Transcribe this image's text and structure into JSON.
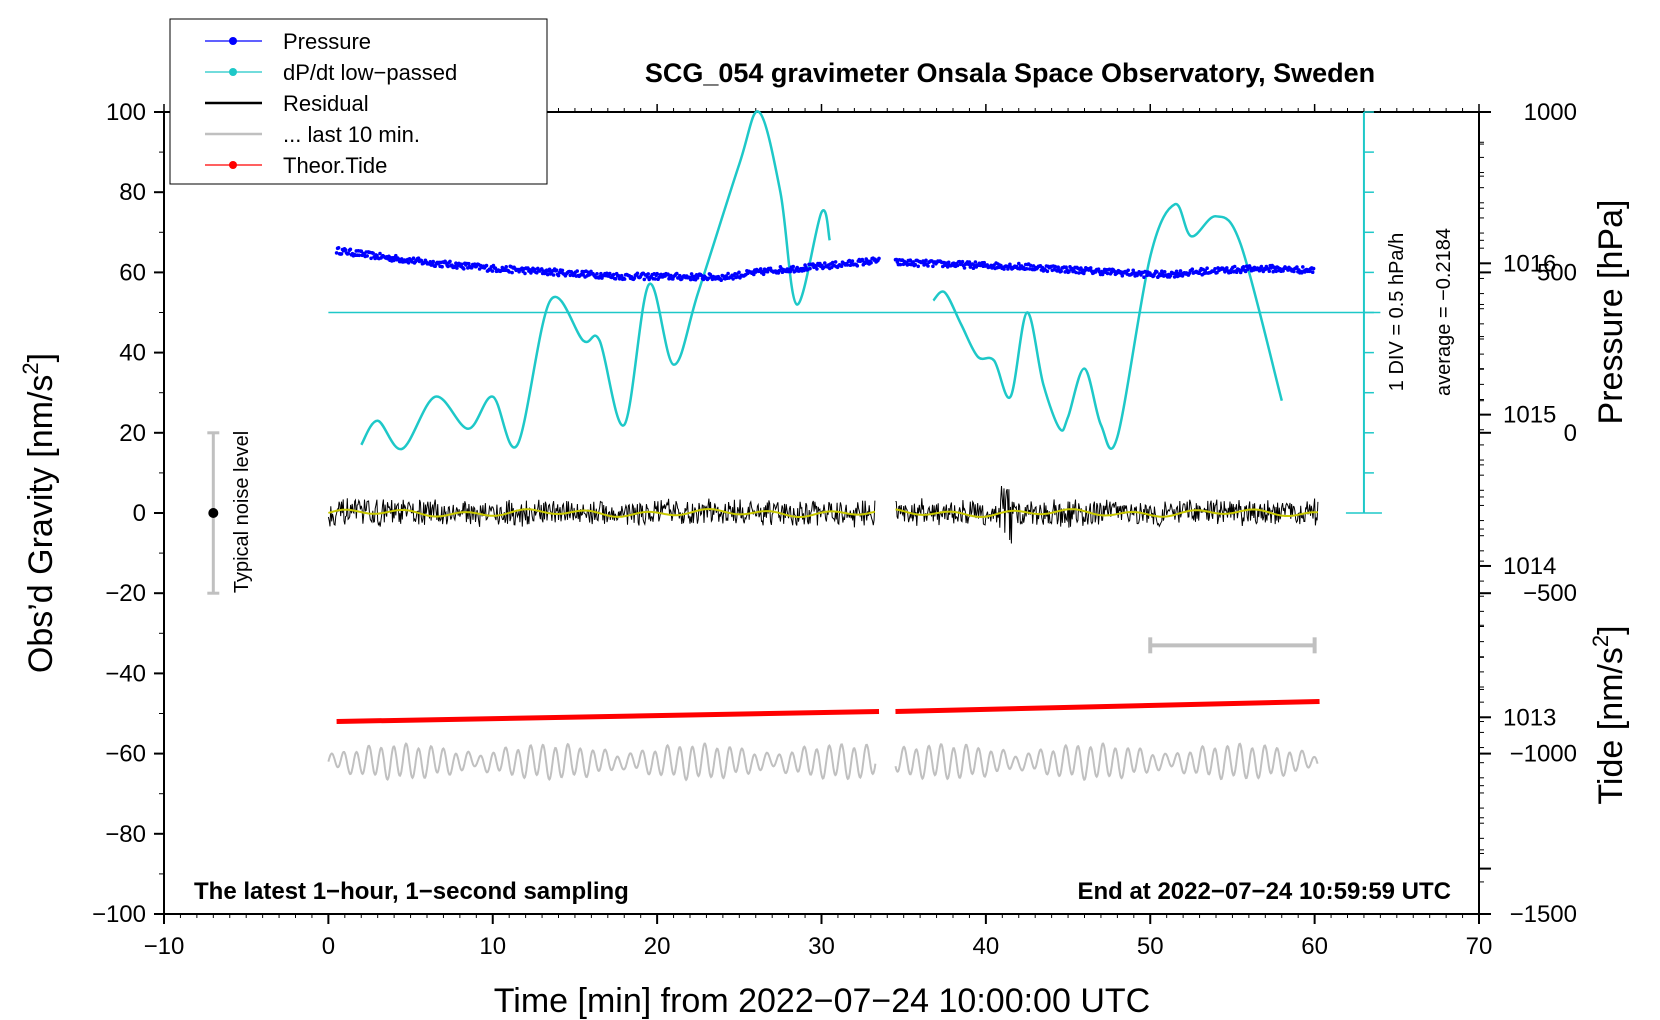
{
  "chart_data": {
    "type": "line",
    "title": "SCG_054 gravimeter Onsala Space Observatory, Sweden",
    "xlabel": "Time [min] from 2022−07−24 10:00:00 UTC",
    "ylabel_left": "Obs’d Gravity [nm/s",
    "ylabel_left_sup": "2",
    "ylabel_left_end": "]",
    "ylabel_right_pressure": "Pressure [hPa]",
    "ylabel_right_tide": "Tide [nm/s",
    "ylabel_right_tide_sup": "2",
    "ylabel_right_tide_end": "]",
    "xlim": [
      -10,
      70
    ],
    "ylim": [
      -100,
      100
    ],
    "x_ticks": [
      -10,
      0,
      10,
      20,
      30,
      40,
      50,
      60,
      70
    ],
    "x_tick_labels": [
      "−10",
      "0",
      "10",
      "20",
      "30",
      "40",
      "50",
      "60",
      "70"
    ],
    "y_ticks": [
      -100,
      -80,
      -60,
      -40,
      -20,
      0,
      20,
      40,
      60,
      80,
      100
    ],
    "y_tick_labels": [
      "−100",
      "−80",
      "−60",
      "−40",
      "−20",
      "0",
      "20",
      "40",
      "60",
      "80",
      "100"
    ],
    "pressure_axis": {
      "range": [
        1011.7,
        1017.0
      ],
      "ticks": [
        1013,
        1014,
        1015,
        1016
      ],
      "tick_labels": [
        "1013",
        "1014",
        "1015",
        "1016"
      ]
    },
    "tide_axis": {
      "range": [
        -1500,
        1000
      ],
      "ticks": [
        -1500,
        -1000,
        -500,
        0,
        500,
        1000
      ],
      "tick_labels": [
        "−1500",
        "−1000",
        "−500",
        "0",
        "500",
        "1000"
      ]
    },
    "legend": [
      {
        "label": "Pressure",
        "color": "#0000ff",
        "marker": true
      },
      {
        "label": "dP/dt low−passed",
        "color": "#1ec8c8",
        "marker": true
      },
      {
        "label": "Residual",
        "color": "#000000",
        "marker": false
      },
      {
        "label": "... last 10 min.",
        "color": "#c0c0c0",
        "marker": false
      },
      {
        "label": "Theor.Tide",
        "color": "#ff0000",
        "marker": true
      }
    ],
    "annotations": {
      "bottom_left": "The latest 1−hour, 1−second sampling",
      "bottom_right": "End at 2022−07−24 10:59:59 UTC",
      "noise_label": "Typical noise level",
      "div_label": "1 DIV = 0.5 hPa/h",
      "average_label": "average = −0.2184"
    },
    "noise_bar": {
      "x": -7,
      "y": 0,
      "ymin": -20,
      "ymax": 20
    },
    "dpdt_baseline": 50,
    "dpdt_segment1": {
      "x": [
        2,
        3,
        4.5,
        6.5,
        8.5,
        10,
        11.5,
        13.5,
        15.5,
        16.5,
        18,
        19.5,
        21,
        22.5,
        25,
        26.2,
        27.5,
        28.5,
        30,
        30.5
      ],
      "y": [
        17,
        23,
        16,
        29,
        21,
        29,
        17,
        53,
        43,
        43,
        22,
        57,
        37,
        55,
        87,
        100,
        80,
        52,
        75,
        68
      ]
    },
    "dpdt_segment2": {
      "x": [
        36.8,
        37.5,
        38.5,
        39.5,
        40.5,
        41.5,
        42.5,
        43.5,
        44.5,
        45,
        46,
        47,
        48,
        50,
        51.5,
        52.5,
        54,
        55.5,
        58
      ],
      "y": [
        53,
        55,
        47,
        39,
        38,
        29,
        50,
        32,
        21,
        24,
        36,
        22,
        19,
        64,
        77,
        69,
        74,
        67,
        28
      ]
    },
    "pressure_segment1": {
      "x": [
        0.5,
        3,
        6,
        10,
        14,
        18,
        20,
        24,
        27,
        30,
        33.5
      ],
      "y": [
        65.5,
        64,
        62.5,
        61,
        60,
        59,
        59,
        58.8,
        60.5,
        61.5,
        63
      ]
    },
    "pressure_segment2": {
      "x": [
        34.5,
        38,
        42,
        46,
        50,
        51,
        54,
        57,
        60
      ],
      "y": [
        62.5,
        62,
        61.5,
        60.5,
        59.5,
        59.5,
        60.5,
        61,
        60.5
      ]
    },
    "residual_segments": [
      [
        0,
        33.3
      ],
      [
        34.5,
        60.2
      ]
    ],
    "smoothed_residual_color": "#c8c800",
    "last10_segments": [
      [
        0,
        33.3
      ],
      [
        34.5,
        60.2
      ]
    ],
    "last10_level": -62,
    "tide_segment1": {
      "x": [
        0.5,
        33.5
      ],
      "y": [
        -52,
        -49.5
      ]
    },
    "tide_segment2": {
      "x": [
        34.5,
        60.3
      ],
      "y": [
        -49.5,
        -47
      ]
    },
    "range_bar": {
      "x1": 50,
      "x2": 60,
      "y": -33
    }
  }
}
